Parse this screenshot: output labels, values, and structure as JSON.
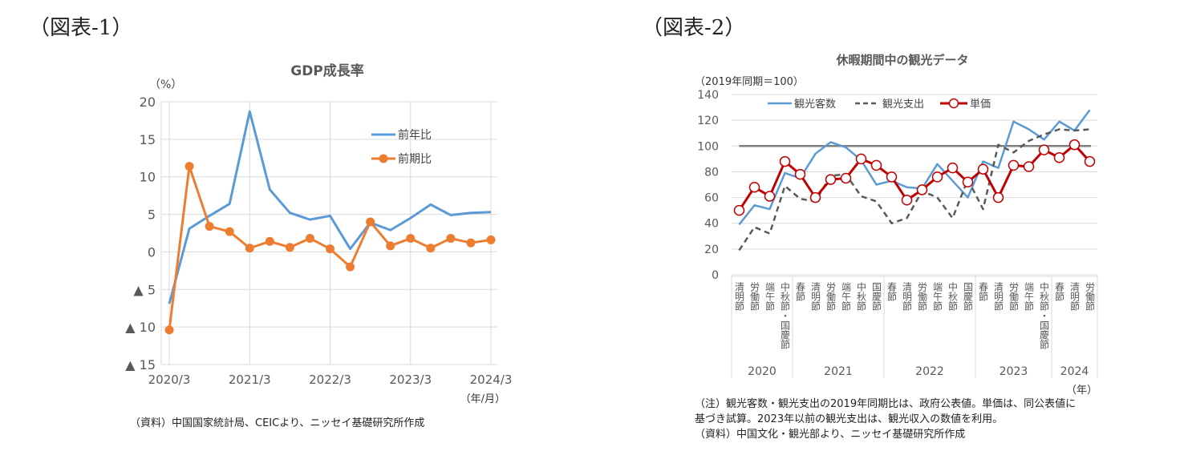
{
  "figures": {
    "fig1_label": "（図表-1）",
    "fig2_label": "（図表-2）"
  },
  "chart_data": [
    {
      "type": "line",
      "title": "GDP成長率",
      "ylabel": "（%）",
      "xlabel": "（年/月）",
      "ylim": [
        -15,
        20
      ],
      "yticks": [
        20,
        15,
        10,
        5,
        0,
        -5,
        -10,
        -15
      ],
      "ytick_labels": [
        "20",
        "15",
        "10",
        "5",
        "0",
        "▲ 5",
        "▲ 10",
        "▲ 15"
      ],
      "x": [
        "2020/3",
        "2020/6",
        "2020/9",
        "2020/12",
        "2021/3",
        "2021/6",
        "2021/9",
        "2021/12",
        "2022/3",
        "2022/6",
        "2022/9",
        "2022/12",
        "2023/3",
        "2023/6",
        "2023/9",
        "2023/12",
        "2024/3"
      ],
      "xtick_labels": [
        "2020/3",
        "2021/3",
        "2022/3",
        "2023/3",
        "2024/3"
      ],
      "grid": true,
      "legend": "top-right",
      "series": [
        {
          "name": "前年比",
          "color": "#5b9bd5",
          "marker": "none",
          "values": [
            -6.9,
            3.1,
            4.8,
            6.4,
            18.7,
            8.3,
            5.2,
            4.3,
            4.8,
            0.4,
            3.9,
            2.9,
            4.5,
            6.3,
            4.9,
            5.2,
            5.3
          ]
        },
        {
          "name": "前期比",
          "color": "#ed7d31",
          "marker": "circle",
          "values": [
            -10.4,
            11.4,
            3.4,
            2.7,
            0.5,
            1.4,
            0.6,
            1.8,
            0.4,
            -2.0,
            4.0,
            0.8,
            1.8,
            0.5,
            1.8,
            1.2,
            1.6
          ]
        }
      ],
      "source": "（資料）中国国家統計局、CEICより、ニッセイ基礎研究所作成"
    },
    {
      "type": "line",
      "title": "休暇期間中の観光データ",
      "ylabel": "（2019年同期＝100）",
      "xlabel": "（年）",
      "ylim": [
        0,
        140
      ],
      "yticks": [
        0,
        20,
        40,
        60,
        80,
        100,
        120,
        140
      ],
      "reference_line": 100,
      "grid": true,
      "legend": "top",
      "categories": [
        "清明節",
        "労働節",
        "端午節",
        "中秋節・国慶節",
        "春節",
        "清明節",
        "労働節",
        "端午節",
        "中秋節",
        "国慶節",
        "春節",
        "清明節",
        "労働節",
        "端午節",
        "中秋節",
        "国慶節",
        "春節",
        "清明節",
        "労働節",
        "端午節",
        "中秋節・国慶節",
        "春節",
        "清明節",
        "労働節"
      ],
      "groups": [
        {
          "label": "2020",
          "count": 4
        },
        {
          "label": "2021",
          "count": 6
        },
        {
          "label": "2022",
          "count": 6
        },
        {
          "label": "2023",
          "count": 5
        },
        {
          "label": "2024",
          "count": 3
        }
      ],
      "series": [
        {
          "name": "観光客数",
          "color": "#5b9bd5",
          "style": "solid",
          "values": [
            39,
            54,
            51,
            79,
            75,
            94,
            103,
            99,
            89,
            70,
            73,
            68,
            67,
            86,
            73,
            60,
            88,
            83,
            119,
            113,
            105,
            119,
            112,
            128
          ]
        },
        {
          "name": "観光支出",
          "color": "#595959",
          "style": "dashed",
          "values": [
            19,
            37,
            32,
            69,
            59,
            57,
            77,
            78,
            61,
            57,
            40,
            44,
            65,
            60,
            44,
            74,
            51,
            101,
            95,
            104,
            109,
            113,
            112,
            113
          ]
        },
        {
          "name": "単価",
          "color": "#c00000",
          "style": "solid-marker",
          "values": [
            50,
            68,
            61,
            88,
            78,
            60,
            74,
            75,
            90,
            85,
            76,
            58,
            66,
            76,
            83,
            72,
            82,
            60,
            85,
            84,
            97,
            91,
            101,
            88
          ]
        }
      ],
      "notes": [
        "（注）観光客数・観光支出の2019年同期比は、政府公表値。単価は、同公表値に",
        "基づき試算。2023年以前の観光支出は、観光収入の数値を利用。",
        "（資料）中国文化・観光部より、ニッセイ基礎研究所作成"
      ]
    }
  ]
}
